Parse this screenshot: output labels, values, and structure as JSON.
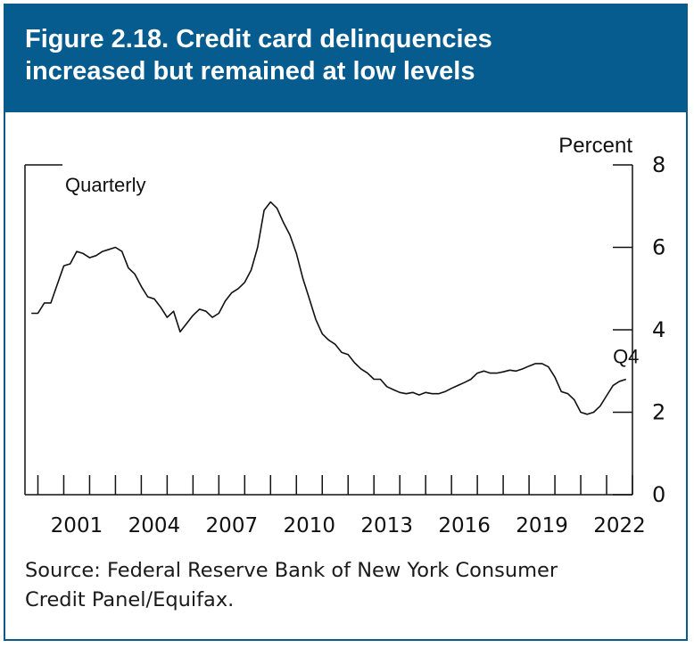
{
  "title": {
    "line1": "Figure 2.18. Credit card delinquencies",
    "line2": "increased but remained at low levels"
  },
  "source": {
    "line1": "Source: Federal Reserve Bank of New York Consumer",
    "line2": "Credit Panel/Equifax."
  },
  "colors": {
    "header_bg": "#065c8f",
    "line": "#111111"
  },
  "chart_data": {
    "type": "line",
    "title": "Figure 2.18. Credit card delinquencies increased but remained at low levels",
    "frequency_label": "Quarterly",
    "ylabel": "Percent",
    "end_label": "Q4",
    "ylim": [
      0,
      8
    ],
    "yticks": [
      0,
      2,
      4,
      6,
      8
    ],
    "xlim": [
      1999.5,
      2023.0
    ],
    "xtick_labels": [
      "2001",
      "2004",
      "2007",
      "2010",
      "2013",
      "2016",
      "2019",
      "2022"
    ],
    "xtick_label_positions": [
      2001.5,
      2004.5,
      2007.5,
      2010.5,
      2013.5,
      2016.5,
      2019.5,
      2022.5
    ],
    "minor_tick_years": [
      2000,
      2001,
      2002,
      2003,
      2004,
      2005,
      2006,
      2007,
      2008,
      2009,
      2010,
      2011,
      2012,
      2013,
      2014,
      2015,
      2016,
      2017,
      2018,
      2019,
      2020,
      2021,
      2022,
      2023
    ],
    "series": [
      {
        "name": "Credit card delinquency rate",
        "x": [
          1999.75,
          2000.0,
          2000.25,
          2000.5,
          2000.75,
          2001.0,
          2001.25,
          2001.5,
          2001.75,
          2002.0,
          2002.25,
          2002.5,
          2002.75,
          2003.0,
          2003.25,
          2003.5,
          2003.75,
          2004.0,
          2004.25,
          2004.5,
          2004.75,
          2005.0,
          2005.25,
          2005.5,
          2005.75,
          2006.0,
          2006.25,
          2006.5,
          2006.75,
          2007.0,
          2007.25,
          2007.5,
          2007.75,
          2008.0,
          2008.25,
          2008.5,
          2008.75,
          2009.0,
          2009.25,
          2009.5,
          2009.75,
          2010.0,
          2010.25,
          2010.5,
          2010.75,
          2011.0,
          2011.25,
          2011.5,
          2011.75,
          2012.0,
          2012.25,
          2012.5,
          2012.75,
          2013.0,
          2013.25,
          2013.5,
          2013.75,
          2014.0,
          2014.25,
          2014.5,
          2014.75,
          2015.0,
          2015.25,
          2015.5,
          2015.75,
          2016.0,
          2016.25,
          2016.5,
          2016.75,
          2017.0,
          2017.25,
          2017.5,
          2017.75,
          2018.0,
          2018.25,
          2018.5,
          2018.75,
          2019.0,
          2019.25,
          2019.5,
          2019.75,
          2020.0,
          2020.25,
          2020.5,
          2020.75,
          2021.0,
          2021.25,
          2021.5,
          2021.75,
          2022.0,
          2022.25,
          2022.5,
          2022.75
        ],
        "values": [
          4.4,
          4.4,
          4.65,
          4.65,
          5.1,
          5.55,
          5.6,
          5.9,
          5.85,
          5.75,
          5.8,
          5.9,
          5.95,
          6.0,
          5.9,
          5.5,
          5.35,
          5.05,
          4.8,
          4.75,
          4.55,
          4.3,
          4.45,
          3.95,
          4.15,
          4.35,
          4.5,
          4.45,
          4.3,
          4.4,
          4.7,
          4.9,
          5.0,
          5.15,
          5.45,
          6.0,
          6.9,
          7.1,
          6.95,
          6.6,
          6.3,
          5.85,
          5.25,
          4.75,
          4.25,
          3.9,
          3.75,
          3.65,
          3.45,
          3.4,
          3.2,
          3.05,
          2.95,
          2.8,
          2.8,
          2.62,
          2.55,
          2.48,
          2.45,
          2.48,
          2.42,
          2.48,
          2.45,
          2.45,
          2.5,
          2.58,
          2.65,
          2.72,
          2.8,
          2.95,
          3.0,
          2.95,
          2.95,
          2.98,
          3.02,
          3.0,
          3.05,
          3.12,
          3.18,
          3.18,
          3.1,
          2.85,
          2.5,
          2.45,
          2.3,
          2.0,
          1.95,
          2.0,
          2.15,
          2.4,
          2.65,
          2.75,
          2.8
        ]
      }
    ]
  }
}
